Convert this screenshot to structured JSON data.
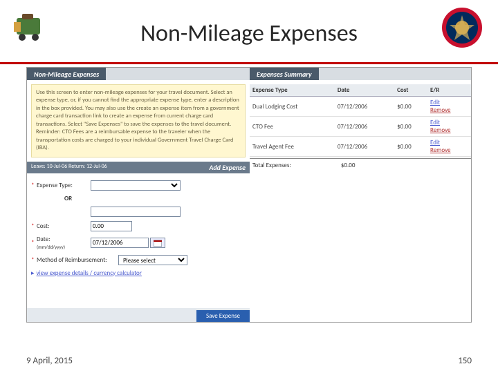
{
  "header": {
    "title": "Non-Mileage Expenses"
  },
  "left": {
    "tab": "Non-Mileage Expenses",
    "instructions": "Use this screen to enter non-mileage expenses for your travel document. Select an expense type, or, if you cannot find the appropriate expense type, enter a description in the box provided. You may also use the create an expense item from a government charge card transaction link to create an expense from current charge card transactions. Select \"Save Expenses\" to save the expenses to the travel document.\nReminder: CTO Fees are a reimbursable expense to the traveler when the transportation costs are charged to your individual Government Travel Charge Card (IBA).",
    "leave": "Leave: 10-Jul-06   Return: 12-Jul-06",
    "addExpense": "Add Expense",
    "labels": {
      "type": "Expense Type:",
      "or": "OR",
      "cost": "Cost:",
      "date": "Date:",
      "dateHint": "(mm/dd/yyyy)",
      "method": "Method of Reimbursement:"
    },
    "values": {
      "type": "",
      "cost": "0.00",
      "date": "07/12/2006",
      "method": "Please select"
    },
    "link": "view expense details / currency calculator",
    "save": "Save Expense"
  },
  "right": {
    "tab": "Expenses Summary",
    "cols": [
      "Expense Type",
      "Date",
      "Cost",
      "E/R"
    ],
    "rows": [
      {
        "type": "Dual Lodging Cost",
        "date": "07/12/2006",
        "cost": "$0.00"
      },
      {
        "type": "CTO Fee",
        "date": "07/12/2006",
        "cost": "$0.00"
      },
      {
        "type": "Travel Agent Fee",
        "date": "07/12/2006",
        "cost": "$0.00"
      }
    ],
    "actions": {
      "edit": "Edit",
      "remove": "Remove"
    },
    "totalLabel": "Total Expenses:",
    "totalValue": "$0.00"
  },
  "footer": {
    "date": "9 April, 2015",
    "page": "150"
  }
}
